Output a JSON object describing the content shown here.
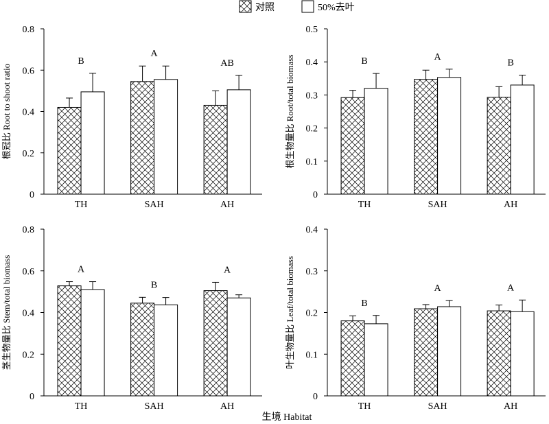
{
  "legend": {
    "items": [
      {
        "label": "对照",
        "pattern": "crosshatch"
      },
      {
        "label": "50%去叶",
        "pattern": "none"
      }
    ]
  },
  "xlabel": "生境 Habitat",
  "colors": {
    "axis": "#000000",
    "bar_fill": "#ffffff",
    "hatch": "#000000"
  },
  "chart_data": [
    {
      "type": "bar",
      "ylabel": "根冠比 Root to shoot ratio",
      "ylim": [
        0,
        0.8
      ],
      "yticks": [
        "0",
        "0.2",
        "0.4",
        "0.6",
        "0.8"
      ],
      "categories": [
        "TH",
        "SAH",
        "AH"
      ],
      "series": [
        {
          "name": "对照",
          "values": [
            0.42,
            0.545,
            0.43
          ],
          "errors": [
            0.045,
            0.075,
            0.07
          ]
        },
        {
          "name": "50%去叶",
          "values": [
            0.495,
            0.555,
            0.505
          ],
          "errors": [
            0.09,
            0.065,
            0.07
          ]
        }
      ],
      "annotations": [
        "B",
        "A",
        "AB"
      ]
    },
    {
      "type": "bar",
      "ylabel": "根生物量比 Root/total biomass",
      "ylim": [
        0,
        0.5
      ],
      "yticks": [
        "0",
        "0.1",
        "0.2",
        "0.3",
        "0.4",
        "0.5"
      ],
      "categories": [
        "TH",
        "SAH",
        "AH"
      ],
      "series": [
        {
          "name": "对照",
          "values": [
            0.292,
            0.347,
            0.293
          ],
          "errors": [
            0.022,
            0.028,
            0.032
          ]
        },
        {
          "name": "50%去叶",
          "values": [
            0.32,
            0.353,
            0.33
          ],
          "errors": [
            0.045,
            0.025,
            0.03
          ]
        }
      ],
      "annotations": [
        "B",
        "A",
        "B"
      ]
    },
    {
      "type": "bar",
      "ylabel": "茎生物量比 Stem/total biomass",
      "ylim": [
        0,
        0.8
      ],
      "yticks": [
        "0",
        "0.2",
        "0.4",
        "0.6",
        "0.8"
      ],
      "categories": [
        "TH",
        "SAH",
        "AH"
      ],
      "series": [
        {
          "name": "对照",
          "values": [
            0.528,
            0.445,
            0.505
          ],
          "errors": [
            0.02,
            0.028,
            0.04
          ]
        },
        {
          "name": "50%去叶",
          "values": [
            0.51,
            0.437,
            0.47
          ],
          "errors": [
            0.038,
            0.035,
            0.015
          ]
        }
      ],
      "annotations": [
        "A",
        "B",
        "A"
      ]
    },
    {
      "type": "bar",
      "ylabel": "叶生物量比 Leaf/total biomass",
      "ylim": [
        0,
        0.4
      ],
      "yticks": [
        "0",
        "0.1",
        "0.2",
        "0.3",
        "0.4"
      ],
      "categories": [
        "TH",
        "SAH",
        "AH"
      ],
      "series": [
        {
          "name": "对照",
          "values": [
            0.18,
            0.209,
            0.204
          ],
          "errors": [
            0.012,
            0.01,
            0.014
          ]
        },
        {
          "name": "50%去叶",
          "values": [
            0.173,
            0.214,
            0.202
          ],
          "errors": [
            0.02,
            0.015,
            0.028
          ]
        }
      ],
      "annotations": [
        "B",
        "A",
        "A"
      ]
    }
  ]
}
